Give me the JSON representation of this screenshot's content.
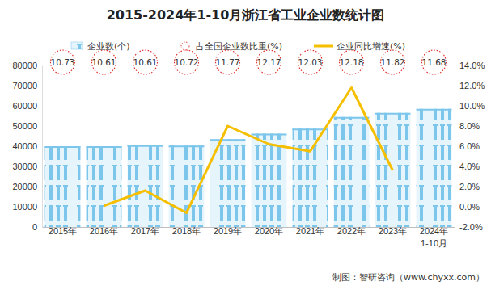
{
  "chart_data": {
    "type": "bar",
    "title": "2015-2024年1-10月浙江省工业企业数统计图",
    "source": "制图：智研咨询（www.chyxx.com）",
    "categories": [
      "2015年",
      "2016年",
      "2017年",
      "2018年",
      "2019年",
      "2020年",
      "2021年",
      "2022年",
      "2023年",
      "2024年\n1-10月"
    ],
    "series": [
      {
        "name": "企业数(个)",
        "type": "bar",
        "color": "#7cc6ec",
        "values": [
          40000,
          40000,
          40500,
          40300,
          43500,
          46200,
          48700,
          54500,
          56500,
          58500
        ]
      },
      {
        "name": "占全国企业数比重(%)",
        "type": "scatter",
        "marker": "circle",
        "line_style": "dotted",
        "color": "#e0302e",
        "data_labels": true,
        "values": [
          10.73,
          10.61,
          10.61,
          10.72,
          11.77,
          12.17,
          12.03,
          12.18,
          11.82,
          11.68
        ]
      },
      {
        "name": "企业同比增速(%)",
        "type": "line",
        "axis": "y2",
        "line_style": "solid",
        "color": "#f5bf00",
        "values": [
          null,
          0.1,
          1.6,
          -0.6,
          8.0,
          6.2,
          5.5,
          11.8,
          3.6,
          null
        ]
      }
    ],
    "ylim": [
      0,
      80000
    ],
    "yticks": [
      0,
      10000,
      20000,
      30000,
      40000,
      50000,
      60000,
      70000,
      80000
    ],
    "y2lim": [
      -2,
      14
    ],
    "y2ticks": [
      {
        "value": -2,
        "label": "-2.0%"
      },
      {
        "value": 0,
        "label": "0.0%"
      },
      {
        "value": 2,
        "label": "2.0%"
      },
      {
        "value": 4,
        "label": "4.0%"
      },
      {
        "value": 6,
        "label": "6.0%"
      },
      {
        "value": 8,
        "label": "8.0%"
      },
      {
        "value": 10,
        "label": "10.0%"
      },
      {
        "value": 12,
        "label": "12.0%"
      },
      {
        "value": 14,
        "label": "14.0%"
      }
    ],
    "legend": "top",
    "grid": false
  }
}
